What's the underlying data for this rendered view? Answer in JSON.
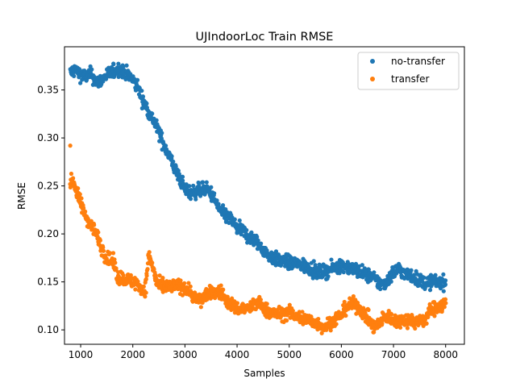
{
  "chart_data": {
    "type": "scatter",
    "title": "UJIndoorLoc Train RMSE",
    "xlabel": "Samples",
    "ylabel": "RMSE",
    "xlim": [
      690,
      8360
    ],
    "ylim": [
      0.085,
      0.395
    ],
    "x_ticks": [
      1000,
      2000,
      3000,
      4000,
      5000,
      6000,
      7000,
      8000
    ],
    "y_ticks": [
      0.1,
      0.15,
      0.2,
      0.25,
      0.3,
      0.35
    ],
    "x_tick_labels": [
      "1000",
      "2000",
      "3000",
      "4000",
      "5000",
      "6000",
      "7000",
      "8000"
    ],
    "y_tick_labels": [
      "0.10",
      "0.15",
      "0.20",
      "0.25",
      "0.30",
      "0.35"
    ],
    "grid": false,
    "legend_position": "top-right",
    "series": [
      {
        "name": "no-transfer",
        "color": "#1f77b4",
        "x_range": [
          800,
          8000
        ],
        "trend": [
          [
            800,
            0.368
          ],
          [
            900,
            0.371
          ],
          [
            1000,
            0.366
          ],
          [
            1100,
            0.364
          ],
          [
            1200,
            0.367
          ],
          [
            1300,
            0.358
          ],
          [
            1400,
            0.36
          ],
          [
            1500,
            0.366
          ],
          [
            1600,
            0.368
          ],
          [
            1700,
            0.372
          ],
          [
            1800,
            0.37
          ],
          [
            1900,
            0.366
          ],
          [
            2000,
            0.36
          ],
          [
            2100,
            0.353
          ],
          [
            2200,
            0.338
          ],
          [
            2300,
            0.328
          ],
          [
            2400,
            0.318
          ],
          [
            2500,
            0.306
          ],
          [
            2600,
            0.292
          ],
          [
            2700,
            0.282
          ],
          [
            2800,
            0.268
          ],
          [
            2900,
            0.258
          ],
          [
            3000,
            0.247
          ],
          [
            3100,
            0.243
          ],
          [
            3200,
            0.244
          ],
          [
            3300,
            0.246
          ],
          [
            3400,
            0.247
          ],
          [
            3500,
            0.242
          ],
          [
            3600,
            0.232
          ],
          [
            3700,
            0.222
          ],
          [
            3800,
            0.219
          ],
          [
            3900,
            0.214
          ],
          [
            4000,
            0.205
          ],
          [
            4100,
            0.204
          ],
          [
            4200,
            0.198
          ],
          [
            4300,
            0.195
          ],
          [
            4400,
            0.19
          ],
          [
            4500,
            0.184
          ],
          [
            4600,
            0.178
          ],
          [
            4700,
            0.175
          ],
          [
            4800,
            0.172
          ],
          [
            4900,
            0.172
          ],
          [
            5000,
            0.17
          ],
          [
            5200,
            0.168
          ],
          [
            5400,
            0.165
          ],
          [
            5500,
            0.16
          ],
          [
            5600,
            0.16
          ],
          [
            5800,
            0.163
          ],
          [
            5900,
            0.166
          ],
          [
            6000,
            0.168
          ],
          [
            6200,
            0.164
          ],
          [
            6400,
            0.16
          ],
          [
            6500,
            0.157
          ],
          [
            6600,
            0.155
          ],
          [
            6700,
            0.15
          ],
          [
            6800,
            0.147
          ],
          [
            6900,
            0.153
          ],
          [
            7000,
            0.16
          ],
          [
            7100,
            0.164
          ],
          [
            7200,
            0.159
          ],
          [
            7400,
            0.155
          ],
          [
            7500,
            0.151
          ],
          [
            7600,
            0.149
          ],
          [
            7700,
            0.15
          ],
          [
            8000,
            0.15
          ]
        ]
      },
      {
        "name": "transfer",
        "color": "#ff7f0e",
        "x_range": [
          800,
          8000
        ],
        "trend": [
          [
            800,
            0.252
          ],
          [
            850,
            0.258
          ],
          [
            900,
            0.247
          ],
          [
            1000,
            0.232
          ],
          [
            1100,
            0.218
          ],
          [
            1200,
            0.21
          ],
          [
            1300,
            0.2
          ],
          [
            1400,
            0.186
          ],
          [
            1500,
            0.174
          ],
          [
            1600,
            0.172
          ],
          [
            1650,
            0.168
          ],
          [
            1700,
            0.155
          ],
          [
            1800,
            0.154
          ],
          [
            1900,
            0.152
          ],
          [
            2000,
            0.15
          ],
          [
            2100,
            0.148
          ],
          [
            2200,
            0.14
          ],
          [
            2250,
            0.145
          ],
          [
            2300,
            0.178
          ],
          [
            2400,
            0.163
          ],
          [
            2450,
            0.15
          ],
          [
            2500,
            0.146
          ],
          [
            2700,
            0.145
          ],
          [
            2900,
            0.146
          ],
          [
            3000,
            0.144
          ],
          [
            3100,
            0.14
          ],
          [
            3200,
            0.133
          ],
          [
            3300,
            0.13
          ],
          [
            3400,
            0.137
          ],
          [
            3500,
            0.138
          ],
          [
            3600,
            0.14
          ],
          [
            3700,
            0.139
          ],
          [
            3800,
            0.13
          ],
          [
            3900,
            0.126
          ],
          [
            4000,
            0.122
          ],
          [
            4200,
            0.122
          ],
          [
            4300,
            0.125
          ],
          [
            4400,
            0.128
          ],
          [
            4500,
            0.124
          ],
          [
            4600,
            0.119
          ],
          [
            4800,
            0.116
          ],
          [
            5000,
            0.118
          ],
          [
            5200,
            0.113
          ],
          [
            5400,
            0.11
          ],
          [
            5500,
            0.107
          ],
          [
            5600,
            0.105
          ],
          [
            5700,
            0.103
          ],
          [
            5800,
            0.108
          ],
          [
            5900,
            0.112
          ],
          [
            6000,
            0.115
          ],
          [
            6100,
            0.124
          ],
          [
            6200,
            0.127
          ],
          [
            6300,
            0.125
          ],
          [
            6400,
            0.119
          ],
          [
            6500,
            0.113
          ],
          [
            6600,
            0.104
          ],
          [
            6700,
            0.104
          ],
          [
            6800,
            0.112
          ],
          [
            6900,
            0.114
          ],
          [
            7000,
            0.11
          ],
          [
            7100,
            0.109
          ],
          [
            7200,
            0.111
          ],
          [
            7300,
            0.11
          ],
          [
            7400,
            0.109
          ],
          [
            7500,
            0.109
          ],
          [
            7600,
            0.11
          ],
          [
            7700,
            0.12
          ],
          [
            7800,
            0.123
          ],
          [
            7900,
            0.125
          ],
          [
            8000,
            0.127
          ]
        ],
        "extra_points": [
          [
            800,
            0.292
          ]
        ]
      }
    ]
  }
}
